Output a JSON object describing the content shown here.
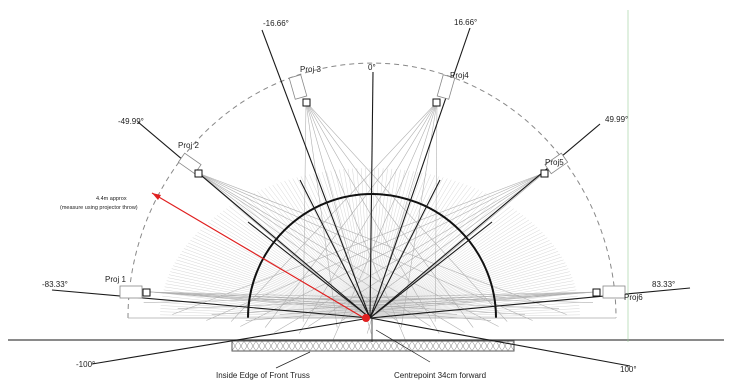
{
  "diagram": {
    "angles": {
      "zero": "0°",
      "neg16": "-16.66°",
      "pos16": "16.66°",
      "neg49": "-49.99°",
      "pos49": "49.99°",
      "neg83": "-83.33°",
      "pos83": "83.33°",
      "neg100": "-100°",
      "pos100": "100°"
    },
    "projectors": [
      "Proj 1",
      "Proj 2",
      "Proj 3",
      "Proj4",
      "Proj5",
      "Proj6"
    ],
    "annotations": {
      "distance": "4.4m approx",
      "distance_note": "(measure using projector throw)",
      "truss": "Inside Edge of Front Truss",
      "centrepoint": "Centrepoint 34cm forward"
    },
    "colors": {
      "line": "#1a1a1a",
      "light": "#9a9a9a",
      "accent": "#e02020",
      "truss": "#7a7a7a"
    }
  }
}
